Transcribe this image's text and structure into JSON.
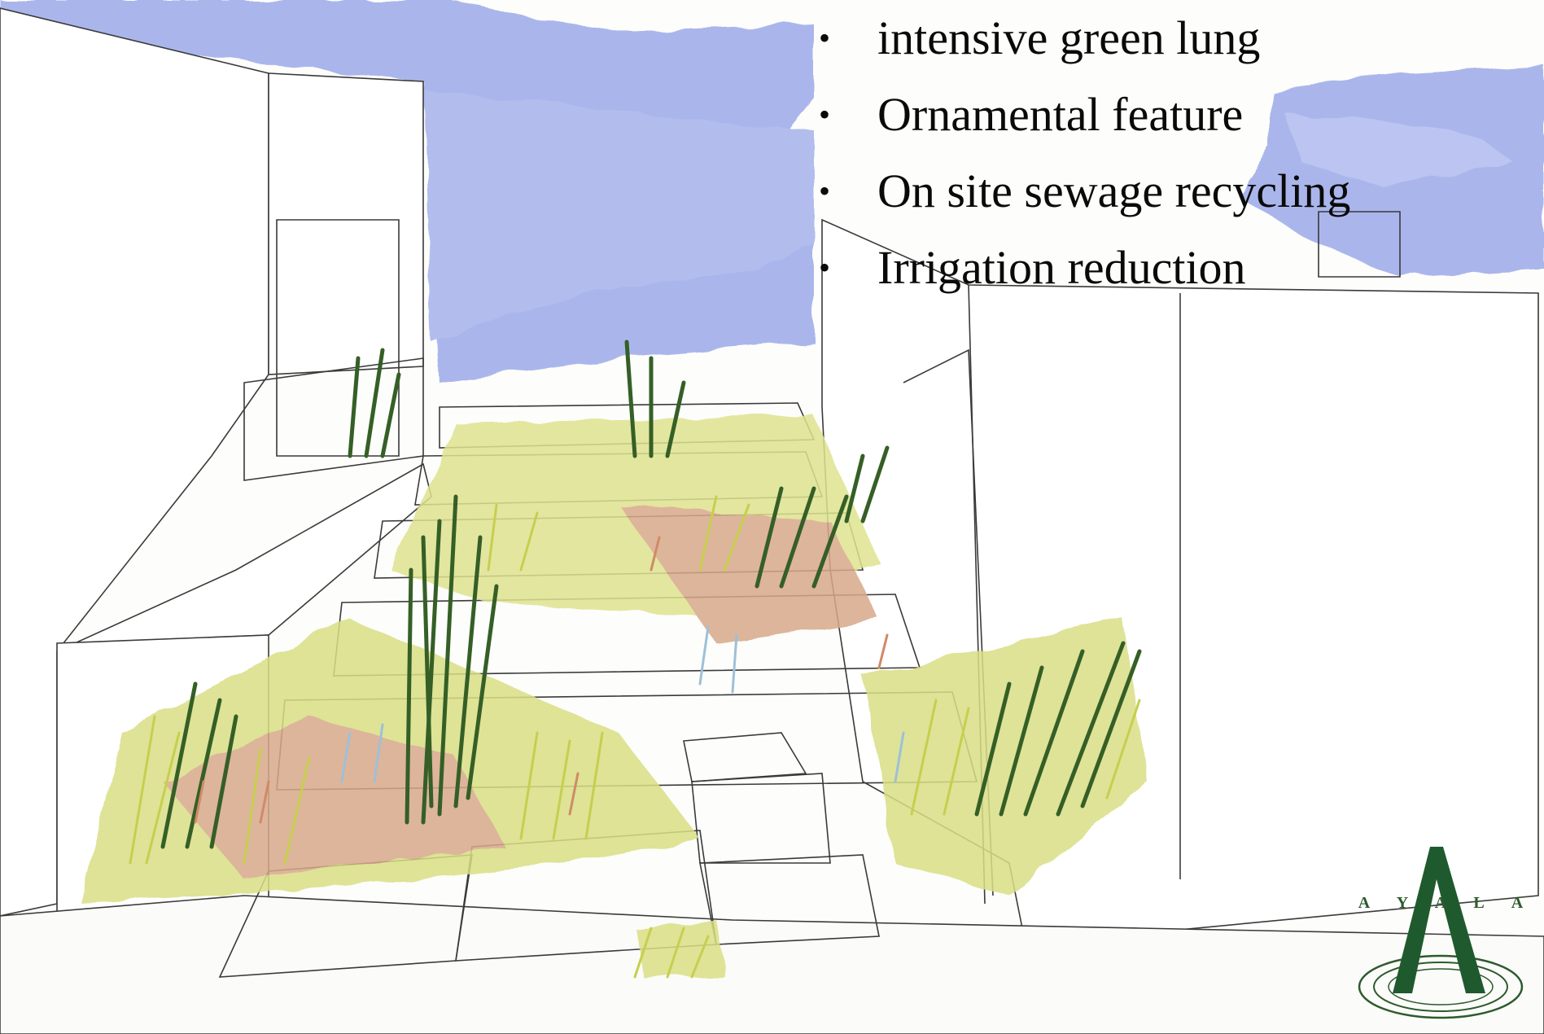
{
  "bullets": [
    {
      "text": "intensive green lung"
    },
    {
      "text": "Ornamental feature"
    },
    {
      "text": "On site sewage recycling"
    },
    {
      "text": "Irrigation reduction"
    }
  ],
  "bullet_glyph": "•",
  "logo": {
    "letters": [
      "A",
      "Y",
      "A",
      "L",
      "A"
    ],
    "color": "#1f5a2e"
  },
  "illustration": {
    "icon": "courtyard-garden-sketch",
    "sky_color": "#8f9fe6",
    "grass_colors": [
      "#cfd66a",
      "#3d6b2a",
      "#d8a07a",
      "#a8c4d8"
    ]
  }
}
